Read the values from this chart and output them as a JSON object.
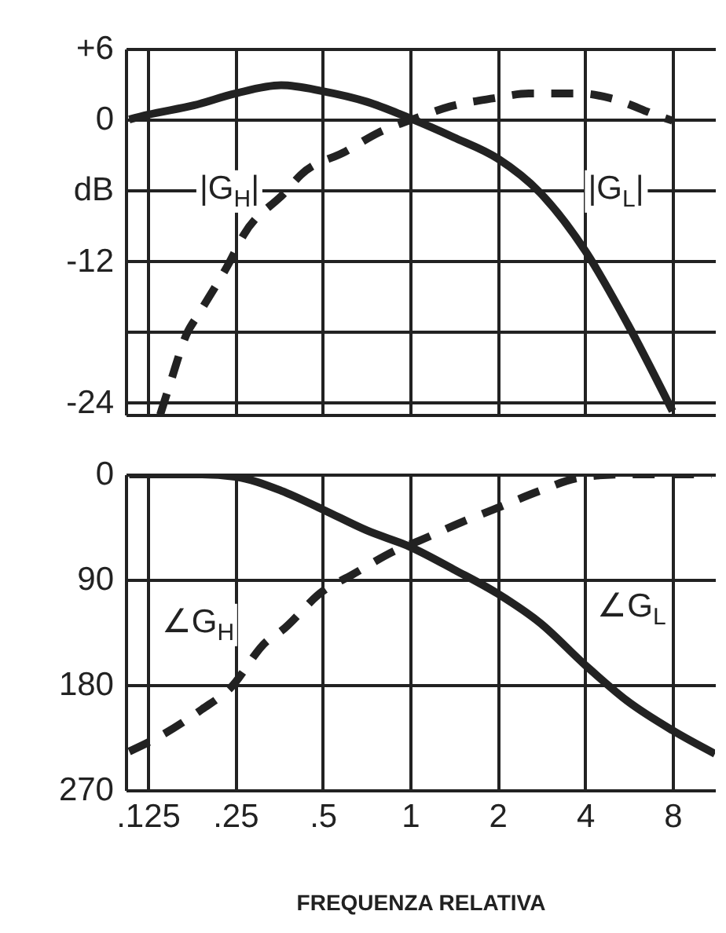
{
  "chart_data": [
    {
      "type": "line",
      "xlim": [
        0.105,
        11.2
      ],
      "ylim": [
        -25,
        6
      ],
      "log": "x",
      "grid": true,
      "tick_labels": "y",
      "xticks": [
        0.125,
        0.25,
        0.5,
        1,
        2,
        4,
        8
      ],
      "yticks": [
        {
          "value": 6,
          "label": "+6"
        },
        0,
        {
          "value": -6,
          "label": "dB"
        },
        -12,
        {
          "value": -18,
          "label": null
        },
        -24
      ],
      "series": [
        {
          "color": "#222222",
          "x": [
            0.108,
            0.125,
            0.18,
            0.25,
            0.36,
            0.5,
            0.71,
            1,
            1.41,
            2,
            2.8,
            4,
            5.6,
            8
          ],
          "values": [
            0,
            0.4,
            1.2,
            2.2,
            2.9,
            2.4,
            1.5,
            0.1,
            -1.5,
            -3.3,
            -6.2,
            -11.1,
            -17.3,
            -24.7
          ]
        },
        {
          "color": "#222222",
          "line_style": "dashed",
          "x": [
            0.138,
            0.15,
            0.17,
            0.188,
            0.24,
            0.267,
            0.37,
            0.42,
            0.6,
            0.78,
            1.07,
            1.37,
            1.94,
            2.56,
            3.9,
            4.9,
            7,
            8
          ],
          "values": [
            -25,
            -22.2,
            -18.2,
            -16.4,
            -12,
            -9.8,
            -6.2,
            -4.7,
            -2.7,
            -1.1,
            0.2,
            1.1,
            1.8,
            2.2,
            2.2,
            1.8,
            0.4,
            -0.1
          ]
        }
      ],
      "annotations": [
        "|G$_{H}$|",
        "|G$_{L}$|"
      ]
    },
    {
      "type": "line",
      "xlim": [
        0.105,
        11.2
      ],
      "ylim": [
        270,
        0
      ],
      "log": "x",
      "grid": true,
      "xlabel": "FREQUENZA RELATIVA",
      "xticks": [
        {
          "value": 0.125,
          "label": ".125"
        },
        {
          "value": 0.25,
          "label": ".25"
        },
        {
          "value": 0.5,
          "label": ".5"
        },
        1,
        2,
        4,
        8
      ],
      "yticks": [
        0,
        90,
        180,
        270
      ],
      "series": [
        {
          "color": "#222222",
          "x": [
            0.108,
            0.125,
            0.192,
            0.25,
            0.36,
            0.5,
            0.71,
            1,
            1.43,
            2,
            2.8,
            4,
            5.6,
            8,
            11.2
          ],
          "values": [
            0,
            0,
            0,
            2,
            14,
            30,
            48,
            62,
            82,
            102,
            127,
            163,
            194,
            219,
            239
          ]
        },
        {
          "color": "#222222",
          "line_style": "dashed",
          "x": [
            0.108,
            0.133,
            0.192,
            0.24,
            0.32,
            0.36,
            0.5,
            0.63,
            0.91,
            1.07,
            1.5,
            1.94,
            2.8,
            3.8,
            5.4,
            10.9
          ],
          "values": [
            237,
            226,
            201,
            183,
            143,
            134,
            100,
            86,
            64,
            57,
            41,
            30,
            14,
            3,
            0,
            0
          ]
        }
      ],
      "annotations": [
        "∠G$_{H}$",
        "∠G$_{L}$"
      ]
    }
  ]
}
